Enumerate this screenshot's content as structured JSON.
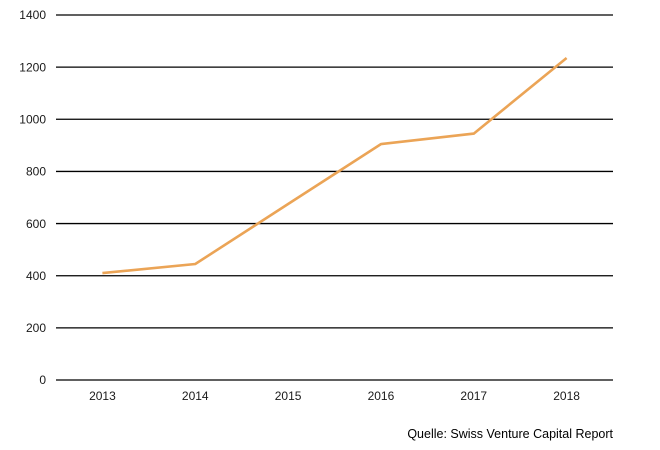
{
  "chart_data": {
    "type": "line",
    "title": "",
    "xlabel": "",
    "ylabel": "",
    "categories": [
      "2013",
      "2014",
      "2015",
      "2016",
      "2017",
      "2018"
    ],
    "values": [
      410,
      445,
      675,
      905,
      945,
      1235
    ],
    "ylim": [
      0,
      1400
    ],
    "yticks": [
      0,
      200,
      400,
      600,
      800,
      1000,
      1200,
      1400
    ],
    "grid": "horizontal",
    "legend": "none",
    "source_note": "Quelle: Swiss Venture Capital Report",
    "colors": {
      "line": "#EBA456",
      "gridline": "#000000",
      "tick_text": "#1a1a1a",
      "source_text": "#000000",
      "background": "#ffffff"
    }
  }
}
